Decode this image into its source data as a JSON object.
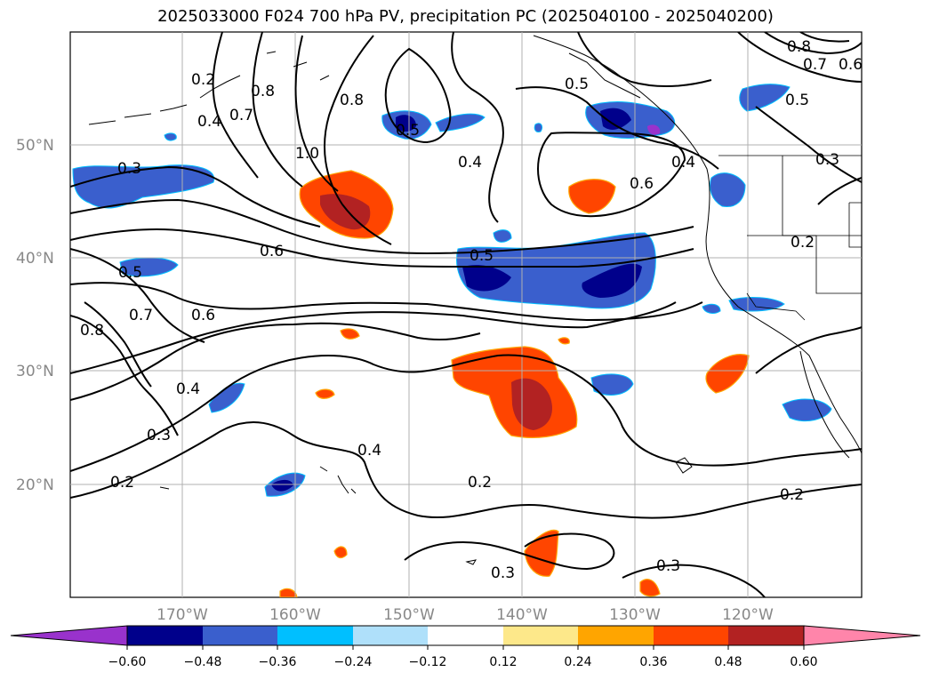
{
  "title": "2025033000 F024 700 hPa PV, precipitation PC (2025040100 - 2025040200)",
  "map": {
    "lat_labels": [
      "50°N",
      "40°N",
      "30°N",
      "20°N"
    ],
    "lon_labels": [
      "170°W",
      "160°W",
      "150°W",
      "140°W",
      "130°W",
      "120°W"
    ],
    "contour_labels": [
      "0.2",
      "0.4",
      "0.7",
      "0.8",
      "0.8",
      "1.0",
      "0.3",
      "0.5",
      "0.6",
      "0.4",
      "0.5",
      "0.8",
      "0.7",
      "0.6",
      "0.5",
      "0.3",
      "0.6",
      "0.4",
      "0.2",
      "0.5",
      "0.6",
      "0.7",
      "0.8",
      "0.4",
      "0.3",
      "0.2",
      "0.4",
      "0.2",
      "0.2",
      "0.3",
      "0.3"
    ]
  },
  "colorbar": {
    "ticks": [
      "−0.60",
      "−0.48",
      "−0.36",
      "−0.24",
      "−0.12",
      "0.12",
      "0.24",
      "0.36",
      "0.48",
      "0.60"
    ],
    "colors": [
      "#9932cc",
      "#00008b",
      "#3a5fcd",
      "#00bfff",
      "#afe0fa",
      "#ffffff",
      "#fde88a",
      "#ffa500",
      "#ff4500",
      "#b22222",
      "#ff85aa"
    ]
  }
}
